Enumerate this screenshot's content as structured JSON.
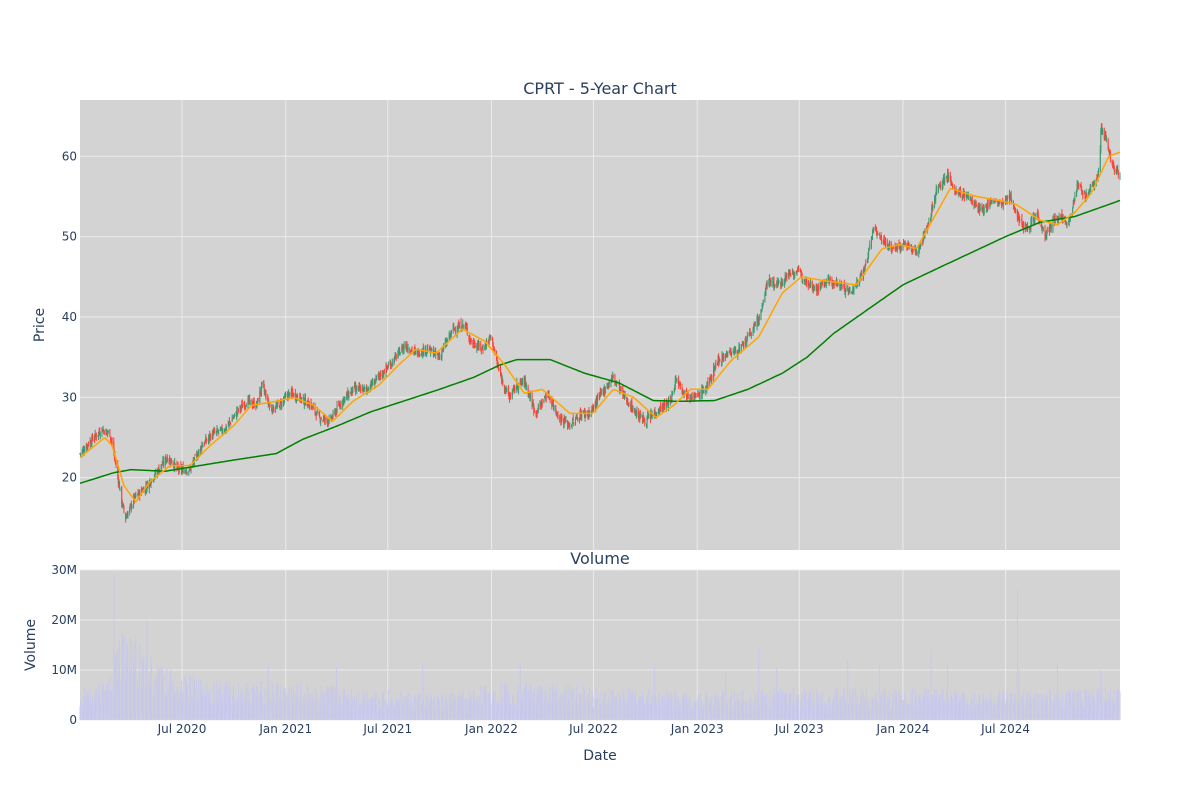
{
  "chart_data": {
    "type": "candlestick",
    "title": "CPRT - 5-Year Chart",
    "price_panel": {
      "ylabel": "Price",
      "yticks": [
        20,
        30,
        40,
        50,
        60
      ],
      "ylim": [
        11,
        67
      ],
      "grid": true,
      "colors": {
        "up": "#3d9970",
        "down": "#ff4136",
        "ma_short": "#ffa500",
        "ma_long": "#008000",
        "background": "#d3d3d3"
      },
      "close_keyframes": [
        [
          "2020-01-02",
          23.0
        ],
        [
          "2020-01-20",
          24.5
        ],
        [
          "2020-02-10",
          26.0
        ],
        [
          "2020-02-24",
          25.5
        ],
        [
          "2020-03-05",
          22.0
        ],
        [
          "2020-03-16",
          17.0
        ],
        [
          "2020-03-23",
          15.0
        ],
        [
          "2020-04-08",
          17.5
        ],
        [
          "2020-04-30",
          19.0
        ],
        [
          "2020-05-15",
          20.5
        ],
        [
          "2020-06-05",
          22.5
        ],
        [
          "2020-06-25",
          21.0
        ],
        [
          "2020-07-15",
          21.0
        ],
        [
          "2020-08-05",
          24.0
        ],
        [
          "2020-08-25",
          25.5
        ],
        [
          "2020-09-15",
          26.0
        ],
        [
          "2020-10-10",
          28.5
        ],
        [
          "2020-10-25",
          29.5
        ],
        [
          "2020-11-10",
          29.0
        ],
        [
          "2020-11-20",
          31.5
        ],
        [
          "2020-12-05",
          28.5
        ],
        [
          "2020-12-20",
          29.0
        ],
        [
          "2021-01-08",
          30.5
        ],
        [
          "2021-01-25",
          30.0
        ],
        [
          "2021-02-15",
          29.0
        ],
        [
          "2021-03-01",
          27.5
        ],
        [
          "2021-03-20",
          27.0
        ],
        [
          "2021-04-10",
          29.5
        ],
        [
          "2021-05-01",
          31.0
        ],
        [
          "2021-05-25",
          31.0
        ],
        [
          "2021-06-15",
          32.5
        ],
        [
          "2021-07-10",
          34.5
        ],
        [
          "2021-07-31",
          36.5
        ],
        [
          "2021-08-20",
          35.5
        ],
        [
          "2021-09-10",
          36.0
        ],
        [
          "2021-09-30",
          35.0
        ],
        [
          "2021-10-25",
          38.5
        ],
        [
          "2021-11-15",
          39.0
        ],
        [
          "2021-11-25",
          37.0
        ],
        [
          "2021-12-15",
          36.0
        ],
        [
          "2021-12-31",
          37.5
        ],
        [
          "2022-01-15",
          33.0
        ],
        [
          "2022-02-01",
          30.0
        ],
        [
          "2022-02-15",
          31.5
        ],
        [
          "2022-03-01",
          32.0
        ],
        [
          "2022-03-20",
          28.0
        ],
        [
          "2022-04-10",
          30.5
        ],
        [
          "2022-05-01",
          27.5
        ],
        [
          "2022-05-20",
          26.5
        ],
        [
          "2022-06-10",
          28.0
        ],
        [
          "2022-06-25",
          28.0
        ],
        [
          "2022-07-15",
          30.5
        ],
        [
          "2022-08-05",
          32.5
        ],
        [
          "2022-08-25",
          30.0
        ],
        [
          "2022-09-15",
          28.0
        ],
        [
          "2022-10-01",
          27.0
        ],
        [
          "2022-10-25",
          28.5
        ],
        [
          "2022-11-15",
          29.5
        ],
        [
          "2022-11-25",
          32.5
        ],
        [
          "2022-12-10",
          30.5
        ],
        [
          "2022-12-31",
          30.0
        ],
        [
          "2023-01-20",
          31.5
        ],
        [
          "2023-02-05",
          34.5
        ],
        [
          "2023-02-25",
          35.5
        ],
        [
          "2023-03-20",
          36.0
        ],
        [
          "2023-04-10",
          38.5
        ],
        [
          "2023-04-25",
          40.5
        ],
        [
          "2023-05-05",
          44.5
        ],
        [
          "2023-05-25",
          44.0
        ],
        [
          "2023-06-15",
          45.5
        ],
        [
          "2023-07-01",
          45.5
        ],
        [
          "2023-07-15",
          44.5
        ],
        [
          "2023-08-01",
          43.5
        ],
        [
          "2023-08-20",
          44.5
        ],
        [
          "2023-09-10",
          44.0
        ],
        [
          "2023-10-01",
          43.0
        ],
        [
          "2023-10-25",
          46.0
        ],
        [
          "2023-11-10",
          51.0
        ],
        [
          "2023-11-25",
          49.5
        ],
        [
          "2023-12-15",
          48.5
        ],
        [
          "2024-01-05",
          49.0
        ],
        [
          "2024-01-25",
          48.0
        ],
        [
          "2024-02-15",
          51.5
        ],
        [
          "2024-03-01",
          56.0
        ],
        [
          "2024-03-20",
          57.5
        ],
        [
          "2024-04-05",
          55.5
        ],
        [
          "2024-04-25",
          55.0
        ],
        [
          "2024-05-20",
          53.0
        ],
        [
          "2024-06-05",
          54.5
        ],
        [
          "2024-06-25",
          54.0
        ],
        [
          "2024-07-10",
          55.0
        ],
        [
          "2024-07-25",
          52.0
        ],
        [
          "2024-08-10",
          51.0
        ],
        [
          "2024-08-25",
          53.0
        ],
        [
          "2024-09-10",
          50.0
        ],
        [
          "2024-09-25",
          52.0
        ],
        [
          "2024-10-10",
          52.5
        ],
        [
          "2024-10-20",
          51.5
        ],
        [
          "2024-11-05",
          56.5
        ],
        [
          "2024-11-20",
          55.0
        ],
        [
          "2024-12-05",
          56.5
        ],
        [
          "2024-12-15",
          58.5
        ],
        [
          "2024-12-17",
          63.5
        ],
        [
          "2024-12-27",
          62.0
        ],
        [
          "2025-01-08",
          58.5
        ],
        [
          "2025-01-20",
          58.0
        ]
      ],
      "ma_short_keyframes": [
        [
          "2020-01-02",
          22.5
        ],
        [
          "2020-02-15",
          25.0
        ],
        [
          "2020-02-28",
          24.0
        ],
        [
          "2020-03-20",
          19.0
        ],
        [
          "2020-04-10",
          17.0
        ],
        [
          "2020-05-05",
          19.5
        ],
        [
          "2020-06-10",
          21.5
        ],
        [
          "2020-07-15",
          21.5
        ],
        [
          "2020-08-20",
          24.0
        ],
        [
          "2020-10-01",
          26.5
        ],
        [
          "2020-11-01",
          29.0
        ],
        [
          "2020-12-15",
          29.5
        ],
        [
          "2021-01-15",
          30.0
        ],
        [
          "2021-02-20",
          29.0
        ],
        [
          "2021-03-25",
          27.0
        ],
        [
          "2021-04-30",
          29.5
        ],
        [
          "2021-06-15",
          31.5
        ],
        [
          "2021-07-20",
          34.0
        ],
        [
          "2021-08-20",
          36.0
        ],
        [
          "2021-09-25",
          35.5
        ],
        [
          "2021-11-10",
          38.5
        ],
        [
          "2021-12-20",
          37.0
        ],
        [
          "2022-01-25",
          34.0
        ],
        [
          "2022-02-28",
          30.5
        ],
        [
          "2022-04-01",
          31.0
        ],
        [
          "2022-05-20",
          28.0
        ],
        [
          "2022-06-30",
          28.0
        ],
        [
          "2022-08-05",
          31.0
        ],
        [
          "2022-09-10",
          30.0
        ],
        [
          "2022-10-20",
          27.5
        ],
        [
          "2022-11-20",
          29.0
        ],
        [
          "2022-12-20",
          31.0
        ],
        [
          "2023-01-20",
          31.0
        ],
        [
          "2023-03-01",
          34.5
        ],
        [
          "2023-04-20",
          37.5
        ],
        [
          "2023-06-01",
          43.0
        ],
        [
          "2023-07-05",
          45.0
        ],
        [
          "2023-08-15",
          44.5
        ],
        [
          "2023-10-10",
          44.0
        ],
        [
          "2023-11-25",
          48.5
        ],
        [
          "2023-12-25",
          49.0
        ],
        [
          "2024-01-25",
          48.5
        ],
        [
          "2024-03-01",
          53.0
        ],
        [
          "2024-03-25",
          56.0
        ],
        [
          "2024-05-10",
          55.0
        ],
        [
          "2024-06-20",
          54.5
        ],
        [
          "2024-07-20",
          54.0
        ],
        [
          "2024-09-01",
          52.0
        ],
        [
          "2024-10-01",
          51.5
        ],
        [
          "2024-11-01",
          53.0
        ],
        [
          "2024-12-01",
          55.5
        ],
        [
          "2024-12-31",
          60.0
        ],
        [
          "2025-01-20",
          60.5
        ]
      ],
      "ma_long_keyframes": [
        [
          "2020-01-02",
          19.3
        ],
        [
          "2020-03-01",
          20.6
        ],
        [
          "2020-04-01",
          21.0
        ],
        [
          "2020-06-01",
          20.8
        ],
        [
          "2020-08-01",
          21.5
        ],
        [
          "2020-10-01",
          22.2
        ],
        [
          "2020-12-15",
          23.0
        ],
        [
          "2021-02-01",
          24.8
        ],
        [
          "2021-04-01",
          26.4
        ],
        [
          "2021-06-01",
          28.2
        ],
        [
          "2021-08-01",
          29.6
        ],
        [
          "2021-10-01",
          31.0
        ],
        [
          "2021-12-01",
          32.5
        ],
        [
          "2022-01-15",
          34.0
        ],
        [
          "2022-02-15",
          34.7
        ],
        [
          "2022-04-15",
          34.7
        ],
        [
          "2022-06-15",
          33.0
        ],
        [
          "2022-08-15",
          31.8
        ],
        [
          "2022-10-15",
          29.6
        ],
        [
          "2022-12-01",
          29.5
        ],
        [
          "2023-02-01",
          29.6
        ],
        [
          "2023-04-01",
          31.0
        ],
        [
          "2023-06-01",
          33.0
        ],
        [
          "2023-07-15",
          35.0
        ],
        [
          "2023-09-01",
          38.0
        ],
        [
          "2023-11-01",
          41.0
        ],
        [
          "2024-01-01",
          44.0
        ],
        [
          "2024-03-01",
          46.0
        ],
        [
          "2024-05-01",
          48.0
        ],
        [
          "2024-07-01",
          50.0
        ],
        [
          "2024-09-01",
          51.8
        ],
        [
          "2024-11-01",
          52.5
        ],
        [
          "2024-12-15",
          53.6
        ],
        [
          "2025-01-20",
          54.5
        ]
      ]
    },
    "volume_panel": {
      "title": "Volume",
      "ylabel": "Volume",
      "yticks": [
        0,
        10000000,
        20000000,
        30000000
      ],
      "ytick_labels": [
        "0",
        "10M",
        "20M",
        "30M"
      ],
      "ylim": [
        0,
        30000000
      ],
      "color": "#c8c8ea",
      "base_keyframes": [
        [
          "2020-01-02",
          5000000
        ],
        [
          "2020-02-20",
          6000000
        ],
        [
          "2020-03-15",
          14000000
        ],
        [
          "2020-04-15",
          13000000
        ],
        [
          "2020-05-15",
          9000000
        ],
        [
          "2020-07-01",
          7000000
        ],
        [
          "2020-10-01",
          6000000
        ],
        [
          "2021-01-01",
          6000000
        ],
        [
          "2021-06-01",
          5000000
        ],
        [
          "2021-10-01",
          4000000
        ],
        [
          "2022-01-15",
          6000000
        ],
        [
          "2022-06-01",
          5500000
        ],
        [
          "2023-01-01",
          4500000
        ],
        [
          "2023-06-01",
          5000000
        ],
        [
          "2024-01-01",
          5000000
        ],
        [
          "2024-06-01",
          4500000
        ],
        [
          "2025-01-20",
          5000000
        ]
      ],
      "spikes": [
        [
          "2020-03-02",
          29000000
        ],
        [
          "2020-04-30",
          20000000
        ],
        [
          "2020-04-10",
          17000000
        ],
        [
          "2020-03-20",
          16500000
        ],
        [
          "2020-12-01",
          11000000
        ],
        [
          "2021-04-01",
          10500000
        ],
        [
          "2021-09-01",
          11000000
        ],
        [
          "2022-02-20",
          11000000
        ],
        [
          "2022-10-15",
          10500000
        ],
        [
          "2023-02-20",
          9500000
        ],
        [
          "2023-04-20",
          14500000
        ],
        [
          "2023-05-20",
          10500000
        ],
        [
          "2023-09-25",
          12000000
        ],
        [
          "2023-11-20",
          11000000
        ],
        [
          "2024-02-20",
          14000000
        ],
        [
          "2024-03-20",
          11000000
        ],
        [
          "2024-07-22",
          26000000
        ],
        [
          "2024-07-25",
          10500000
        ],
        [
          "2024-10-01",
          11500000
        ],
        [
          "2024-12-17",
          10000000
        ]
      ]
    },
    "x_axis": {
      "xlabel": "Date",
      "start": "2020-01-02",
      "end": "2025-01-20",
      "ticks": [
        {
          "date": "2020-07-01",
          "label": "Jul 2020"
        },
        {
          "date": "2021-01-01",
          "label": "Jan 2021"
        },
        {
          "date": "2021-07-01",
          "label": "Jul 2021"
        },
        {
          "date": "2022-01-01",
          "label": "Jan 2022"
        },
        {
          "date": "2022-07-01",
          "label": "Jul 2022"
        },
        {
          "date": "2023-01-01",
          "label": "Jan 2023"
        },
        {
          "date": "2023-07-01",
          "label": "Jul 2023"
        },
        {
          "date": "2024-01-01",
          "label": "Jan 2024"
        },
        {
          "date": "2024-07-01",
          "label": "Jul 2024"
        }
      ]
    }
  }
}
